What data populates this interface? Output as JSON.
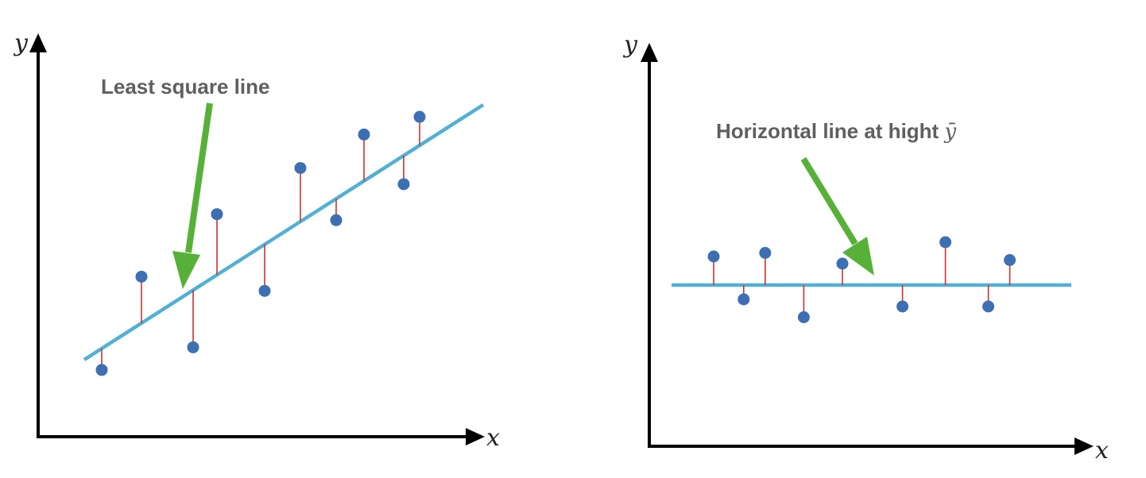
{
  "panels": [
    {
      "name": "left",
      "x_label": "x",
      "y_label": "y",
      "annotation": "Least square line",
      "line": {
        "kind": "least-squares"
      },
      "points": [
        {
          "id": 1,
          "dx": 0.16,
          "dy": -0.06
        },
        {
          "id": 2,
          "dx": 0.26,
          "dy": 0.13
        },
        {
          "id": 3,
          "dx": 0.39,
          "dy": -0.16
        },
        {
          "id": 4,
          "dx": 0.45,
          "dy": 0.17
        },
        {
          "id": 5,
          "dx": 0.57,
          "dy": -0.13
        },
        {
          "id": 6,
          "dx": 0.66,
          "dy": 0.15
        },
        {
          "id": 7,
          "dx": 0.75,
          "dy": -0.06
        },
        {
          "id": 8,
          "dx": 0.82,
          "dy": 0.13
        },
        {
          "id": 9,
          "dx": 0.92,
          "dy": -0.08
        },
        {
          "id": 10,
          "dx": 0.96,
          "dy": 0.08
        }
      ]
    },
    {
      "name": "right",
      "x_label": "x",
      "y_label": "y",
      "annotation": "Horizontal line at hight ",
      "annotation_symbol": "ȳ",
      "line": {
        "kind": "horizontal-mean"
      },
      "points": [
        {
          "id": 1,
          "dx": 0.15,
          "dy": 0.08
        },
        {
          "id": 2,
          "dx": 0.22,
          "dy": -0.04
        },
        {
          "id": 3,
          "dx": 0.27,
          "dy": 0.09
        },
        {
          "id": 4,
          "dx": 0.36,
          "dy": -0.09
        },
        {
          "id": 5,
          "dx": 0.45,
          "dy": 0.06
        },
        {
          "id": 6,
          "dx": 0.59,
          "dy": -0.06
        },
        {
          "id": 7,
          "dx": 0.69,
          "dy": 0.12
        },
        {
          "id": 8,
          "dx": 0.79,
          "dy": -0.06
        },
        {
          "id": 9,
          "dx": 0.84,
          "dy": 0.07
        }
      ]
    }
  ]
}
